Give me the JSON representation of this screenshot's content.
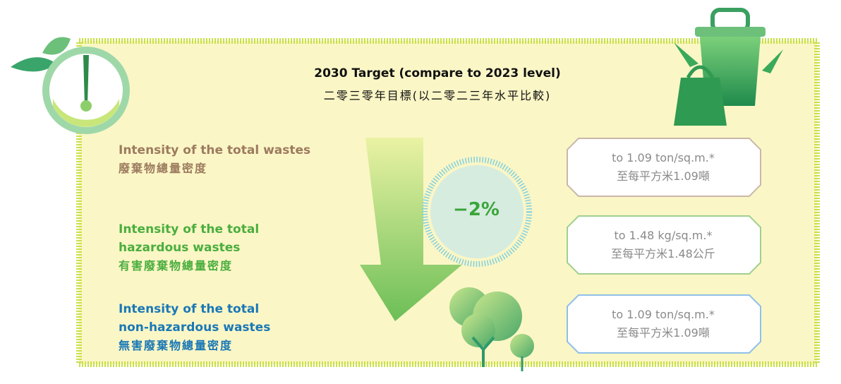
{
  "header": {
    "title_en": "2030 Target (compare to 2023 level)",
    "title_zh": "二零三零年目標(以二零二三年水平比較)"
  },
  "reduction": "−2%",
  "items": [
    {
      "label_en": "Intensity of the total wastes",
      "label_zh": "廢棄物總量密度",
      "target_en": "to 1.09 ton/sq.m.*",
      "target_zh": "至每平方米1.09噸"
    },
    {
      "label_en": "Intensity of the total hazardous wastes",
      "label_zh": "有害廢棄物總量密度",
      "target_en": "to 1.48 kg/sq.m.*",
      "target_zh": "至每平方米1.48公斤"
    },
    {
      "label_en": "Intensity of the total non-hazardous wastes",
      "label_zh": "無害廢棄物總量密度",
      "target_en": "to 1.09 ton/sq.m.*",
      "target_zh": "至每平方米1.09噸"
    }
  ]
}
